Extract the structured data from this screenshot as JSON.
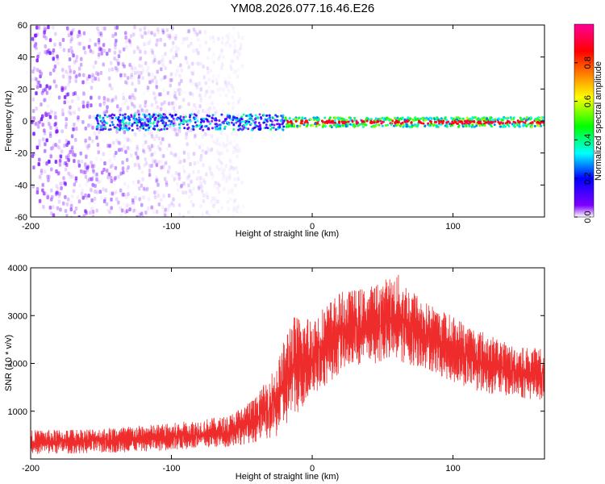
{
  "title": "YM08.2026.077.16.46.E26",
  "chart_data": [
    {
      "type": "heatmap",
      "xlabel": "Height of straight line (km)",
      "ylabel": "Frequency (Hz)",
      "xlim": [
        -200,
        165
      ],
      "ylim": [
        -60,
        60
      ],
      "xticks": [
        -200,
        -100,
        0,
        100
      ],
      "yticks": [
        -60,
        -40,
        -20,
        0,
        20,
        40,
        60
      ],
      "colorbar": {
        "label": "Normalized spectral amplitude",
        "range": [
          0,
          1
        ],
        "ticks": [
          0.0,
          0.2,
          0.4,
          0.6,
          0.8
        ],
        "tick_labels": [
          "0.0",
          "0.2",
          "0.4",
          "0.6",
          "0.8"
        ],
        "colormap": [
          "#ffffff",
          "#7f00ff",
          "#0000ff",
          "#00ffff",
          "#00ff00",
          "#ffff00",
          "#ff8000",
          "#ff0000",
          "#ff00aa"
        ]
      },
      "description_bands": [
        {
          "x_range": [
            -200,
            -50
          ],
          "y_range": [
            -60,
            60
          ],
          "amplitude": 0.05
        },
        {
          "x_range": [
            -155,
            -20
          ],
          "y_range": [
            -5,
            5
          ],
          "amplitude": 0.3
        },
        {
          "x_range": [
            -20,
            165
          ],
          "y_range": [
            -3,
            3
          ],
          "amplitude": 0.9
        }
      ],
      "grid": false
    },
    {
      "type": "line",
      "xlabel": "Height of straight line (km)",
      "ylabel": "SNR (10 * v/v)",
      "xlim": [
        -200,
        165
      ],
      "ylim": [
        0,
        4000
      ],
      "xticks": [
        -200,
        -100,
        0,
        100
      ],
      "yticks": [
        1000,
        2000,
        3000,
        4000
      ],
      "color": "#ee2c2c",
      "envelope": {
        "x": [
          -200,
          -150,
          -100,
          -60,
          -40,
          -25,
          -15,
          0,
          20,
          40,
          60,
          80,
          100,
          120,
          140,
          165
        ],
        "low": [
          100,
          120,
          180,
          250,
          350,
          450,
          800,
          1300,
          1800,
          2000,
          2000,
          1900,
          1600,
          1400,
          1300,
          1200
        ],
        "high": [
          600,
          650,
          750,
          900,
          1300,
          2000,
          3000,
          3000,
          3500,
          3600,
          3900,
          3300,
          3000,
          2700,
          2400,
          2300
        ]
      },
      "grid": false
    }
  ]
}
